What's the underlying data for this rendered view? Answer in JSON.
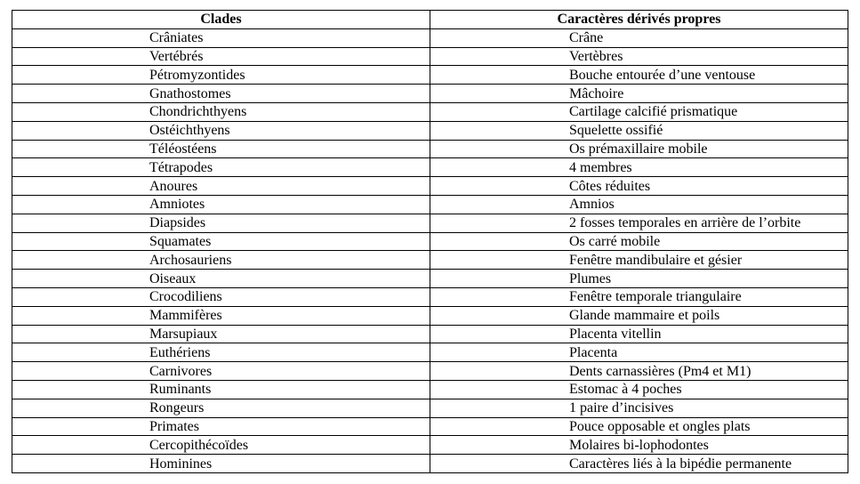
{
  "colors": {
    "background": "#ffffff",
    "border": "#000000",
    "text": "#000000"
  },
  "table": {
    "columns": [
      "Clades",
      "Caractères dérivés propres"
    ],
    "rows": [
      [
        "Crâniates",
        "Crâne"
      ],
      [
        "Vertébrés",
        "Vertèbres"
      ],
      [
        "Pétromyzontides",
        "Bouche entourée d’une ventouse"
      ],
      [
        "Gnathostomes",
        "Mâchoire"
      ],
      [
        "Chondrichthyens",
        "Cartilage calcifié prismatique"
      ],
      [
        "Ostéichthyens",
        "Squelette ossifié"
      ],
      [
        "Téléostéens",
        "Os prémaxillaire mobile"
      ],
      [
        "Tétrapodes",
        "4 membres"
      ],
      [
        "Anoures",
        "Côtes réduites"
      ],
      [
        "Amniotes",
        "Amnios"
      ],
      [
        "Diapsides",
        "2 fosses temporales en arrière de l’orbite"
      ],
      [
        "Squamates",
        "Os carré mobile"
      ],
      [
        "Archosauriens",
        "Fenêtre mandibulaire et gésier"
      ],
      [
        "Oiseaux",
        "Plumes"
      ],
      [
        "Crocodiliens",
        "Fenêtre temporale triangulaire"
      ],
      [
        "Mammifères",
        "Glande mammaire et poils"
      ],
      [
        "Marsupiaux",
        "Placenta vitellin"
      ],
      [
        "Euthériens",
        "Placenta"
      ],
      [
        "Carnivores",
        "Dents carnassières (Pm4 et M1)"
      ],
      [
        "Ruminants",
        "Estomac à 4 poches"
      ],
      [
        "Rongeurs",
        "1 paire d’incisives"
      ],
      [
        "Primates",
        "Pouce opposable et ongles plats"
      ],
      [
        "Cercopithécoïdes",
        "Molaires bi-lophodontes"
      ],
      [
        "Hominines",
        "Caractères liés à la bipédie permanente"
      ]
    ]
  }
}
